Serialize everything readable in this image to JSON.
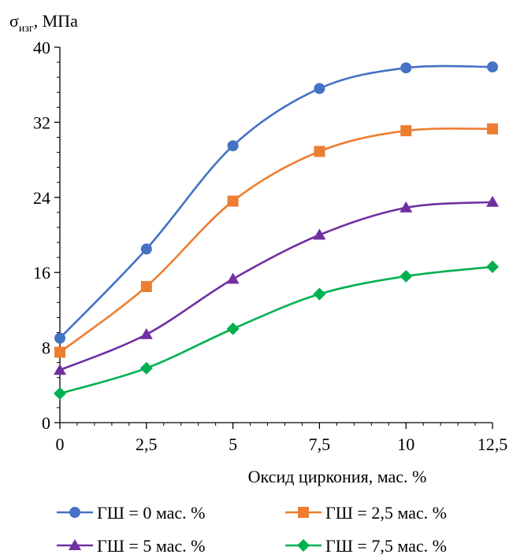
{
  "chart_data": {
    "type": "line",
    "ylabel": "σ",
    "ylabel_sub": "изг",
    "ylabel_unit": ", МПа",
    "xlabel": "Оксид циркония, мас. %",
    "x": [
      0,
      2.5,
      5,
      7.5,
      10,
      12.5
    ],
    "x_tick_labels": [
      "0",
      "2,5",
      "5",
      "7,5",
      "10",
      "12,5"
    ],
    "y_ticks": [
      0,
      8,
      16,
      24,
      32,
      40
    ],
    "y_tick_labels": [
      "0",
      "8",
      "16",
      "24",
      "32",
      "40"
    ],
    "xlim": [
      0,
      12.5
    ],
    "ylim": [
      0,
      40
    ],
    "grid": false,
    "legend_position": "bottom",
    "series": [
      {
        "name": "ГШ = 0 мас. %",
        "marker": "circle",
        "color": "#4472C4",
        "values": [
          9.0,
          18.5,
          29.5,
          35.6,
          37.8,
          37.9
        ]
      },
      {
        "name": "ГШ = 2,5 мас. %",
        "marker": "square",
        "color": "#ED7D31",
        "values": [
          7.5,
          14.5,
          23.6,
          28.9,
          31.1,
          31.3
        ]
      },
      {
        "name": "ГШ = 5 мас. %",
        "marker": "triangle",
        "color": "#7030A0",
        "values": [
          5.6,
          9.4,
          15.3,
          20.0,
          22.9,
          23.5
        ]
      },
      {
        "name": "ГШ = 7,5 мас. %",
        "marker": "diamond",
        "color": "#00B050",
        "values": [
          3.1,
          5.8,
          10.0,
          13.7,
          15.6,
          16.6
        ]
      }
    ]
  }
}
